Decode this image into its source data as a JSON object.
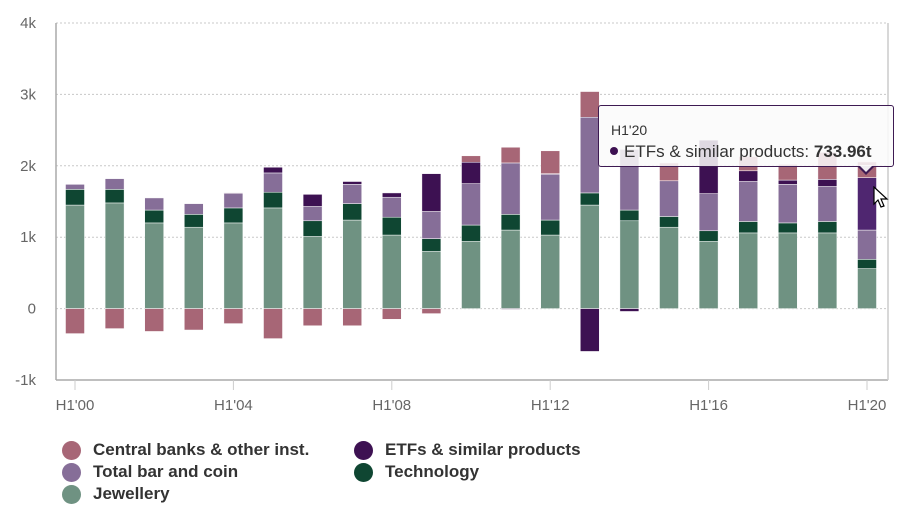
{
  "chart_data": {
    "type": "bar",
    "stacked": true,
    "title": "",
    "xlabel": "",
    "ylabel": "",
    "ylim": [
      -1000,
      4000
    ],
    "yticks": [
      -1000,
      0,
      1000,
      2000,
      3000,
      4000
    ],
    "ytick_labels": [
      "-1k",
      "0",
      "1k",
      "2k",
      "3k",
      "4k"
    ],
    "grid": true,
    "legend_placement": "bottom-left",
    "categories": [
      "H1'00",
      "H1'01",
      "H1'02",
      "H1'03",
      "H1'04",
      "H1'05",
      "H1'06",
      "H1'07",
      "H1'08",
      "H1'09",
      "H1'10",
      "H1'11",
      "H1'12",
      "H1'13",
      "H1'14",
      "H1'15",
      "H1'16",
      "H1'17",
      "H1'18",
      "H1'19",
      "H1'20"
    ],
    "xtick_labels": [
      "H1'00",
      "H1'04",
      "H1'08",
      "H1'12",
      "H1'16",
      "H1'20"
    ],
    "series": [
      {
        "name": "Jewellery",
        "color": "#6f9282",
        "values": [
          1450,
          1480,
          1200,
          1140,
          1200,
          1410,
          1010,
          1240,
          1030,
          800,
          940,
          1100,
          1030,
          1450,
          1230,
          1140,
          940,
          1060,
          1060,
          1060,
          560
        ]
      },
      {
        "name": "Technology",
        "color": "#0f4632",
        "values": [
          220,
          190,
          180,
          180,
          210,
          220,
          220,
          230,
          250,
          180,
          230,
          220,
          210,
          170,
          150,
          150,
          150,
          160,
          140,
          160,
          130
        ]
      },
      {
        "name": "Total bar and coin",
        "color": "#866e98",
        "values": [
          70,
          150,
          170,
          150,
          200,
          270,
          200,
          270,
          280,
          380,
          580,
          720,
          640,
          1060,
          850,
          500,
          520,
          560,
          540,
          490,
          410
        ]
      },
      {
        "name": "ETFs & similar products",
        "color": "#3d1152",
        "values": [
          0,
          0,
          0,
          0,
          10,
          80,
          170,
          40,
          60,
          530,
          300,
          -10,
          10,
          -600,
          -40,
          0,
          750,
          150,
          60,
          100,
          733.96
        ]
      },
      {
        "name": "Central banks & other inst.",
        "color": "#a76676",
        "values": [
          -350,
          -280,
          -320,
          -300,
          -210,
          -420,
          -240,
          -240,
          -150,
          -70,
          90,
          220,
          320,
          360,
          0,
          250,
          0,
          200,
          220,
          380,
          220
        ]
      }
    ],
    "legend_order": [
      "Central banks & other inst.",
      "ETFs & similar products",
      "Total bar and coin",
      "Technology",
      "Jewellery"
    ],
    "tooltip": {
      "category": "H1'20",
      "series": "ETFs & similar products",
      "label": "ETFs & similar products: ",
      "value": "733.96t"
    }
  },
  "legend": [
    {
      "label": "Central banks & other inst.",
      "color": "#a76676"
    },
    {
      "label": "ETFs & similar products",
      "color": "#3d1152"
    },
    {
      "label": "Total bar and coin",
      "color": "#866e98"
    },
    {
      "label": "Technology",
      "color": "#0f4632"
    },
    {
      "label": "Jewellery",
      "color": "#6f9282"
    }
  ],
  "tooltip": {
    "title": "H1'20",
    "label": "ETFs & similar products: ",
    "value": "733.96t",
    "dot_color": "#3d1152"
  }
}
